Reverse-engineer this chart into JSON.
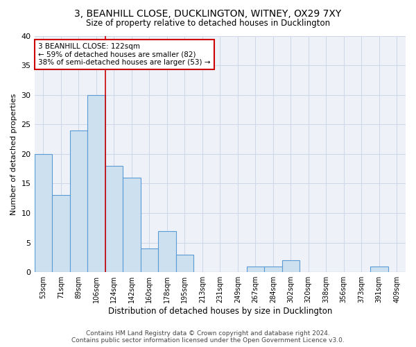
{
  "title": "3, BEANHILL CLOSE, DUCKLINGTON, WITNEY, OX29 7XY",
  "subtitle": "Size of property relative to detached houses in Ducklington",
  "xlabel": "Distribution of detached houses by size in Ducklington",
  "ylabel": "Number of detached properties",
  "categories": [
    "53sqm",
    "71sqm",
    "89sqm",
    "106sqm",
    "124sqm",
    "142sqm",
    "160sqm",
    "178sqm",
    "195sqm",
    "213sqm",
    "231sqm",
    "249sqm",
    "267sqm",
    "284sqm",
    "302sqm",
    "320sqm",
    "338sqm",
    "356sqm",
    "373sqm",
    "391sqm",
    "409sqm"
  ],
  "values": [
    20,
    13,
    24,
    30,
    18,
    16,
    4,
    7,
    3,
    0,
    0,
    0,
    1,
    1,
    2,
    0,
    0,
    0,
    0,
    1,
    0
  ],
  "bar_color": "#cce0f0",
  "bar_edge_color": "#5b9bd5",
  "grid_color": "#d0d8e8",
  "background_color": "#eef2f8",
  "vline_x_index": 3.5,
  "vline_color": "#cc0000",
  "annotation_text": "3 BEANHILL CLOSE: 122sqm\n← 59% of detached houses are smaller (82)\n38% of semi-detached houses are larger (53) →",
  "annotation_box_color": "#ffffff",
  "annotation_box_edge": "#cc0000",
  "ylim": [
    0,
    40
  ],
  "yticks": [
    0,
    5,
    10,
    15,
    20,
    25,
    30,
    35,
    40
  ],
  "footer1": "Contains HM Land Registry data © Crown copyright and database right 2024.",
  "footer2": "Contains public sector information licensed under the Open Government Licence v3.0."
}
